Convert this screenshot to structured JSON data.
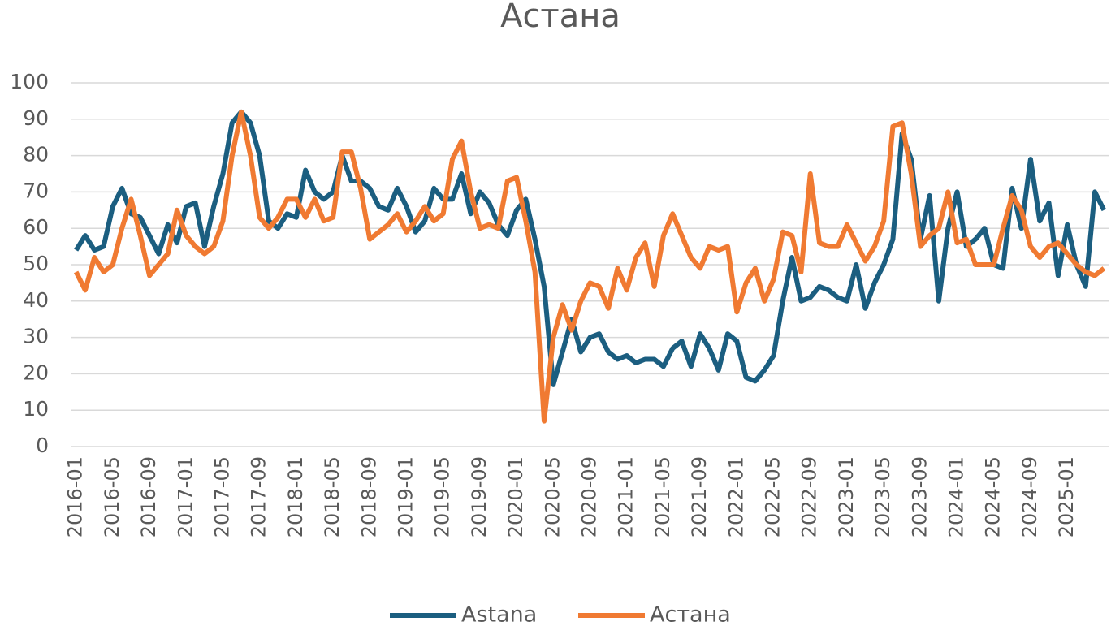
{
  "chart_data": {
    "type": "line",
    "title": "Астана",
    "categories": [
      "2016-01",
      null,
      null,
      null,
      "2016-05",
      null,
      null,
      null,
      "2016-09",
      null,
      null,
      null,
      "2017-01",
      null,
      null,
      null,
      "2017-05",
      null,
      null,
      null,
      "2017-09",
      null,
      null,
      null,
      "2018-01",
      null,
      null,
      null,
      "2018-05",
      null,
      null,
      null,
      "2018-09",
      null,
      null,
      null,
      "2019-01",
      null,
      null,
      null,
      "2019-05",
      null,
      null,
      null,
      "2019-09",
      null,
      null,
      null,
      "2020-01",
      null,
      null,
      null,
      "2020-05",
      null,
      null,
      null,
      "2020-09",
      null,
      null,
      null,
      "2021-01",
      null,
      null,
      null,
      "2021-05",
      null,
      null,
      null,
      "2021-09",
      null,
      null,
      null,
      "2022-01",
      null,
      null,
      null,
      "2022-05",
      null,
      null,
      null,
      "2022-09",
      null,
      null,
      null,
      "2023-01",
      null,
      null,
      null,
      "2023-05",
      null,
      null,
      null,
      "2023-09",
      null,
      null,
      null,
      "2024-01",
      null,
      null,
      null,
      "2024-05",
      null,
      null,
      null,
      "2024-09",
      null,
      null,
      null,
      "2025-01",
      null,
      null,
      null,
      null
    ],
    "series": [
      {
        "name": "Astana",
        "color": "#1b5e80",
        "values": [
          54,
          58,
          54,
          55,
          66,
          71,
          64,
          63,
          58,
          53,
          61,
          56,
          66,
          67,
          55,
          66,
          75,
          89,
          92,
          89,
          80,
          62,
          60,
          64,
          63,
          76,
          70,
          68,
          70,
          80,
          73,
          73,
          71,
          66,
          65,
          71,
          66,
          59,
          62,
          71,
          68,
          68,
          75,
          64,
          70,
          67,
          61,
          58,
          65,
          68,
          57,
          44,
          17,
          26,
          35,
          26,
          30,
          31,
          26,
          24,
          25,
          23,
          24,
          24,
          22,
          27,
          29,
          22,
          31,
          27,
          21,
          31,
          29,
          19,
          18,
          21,
          25,
          40,
          52,
          40,
          41,
          44,
          43,
          41,
          40,
          50,
          38,
          45,
          50,
          57,
          86,
          79,
          57,
          69,
          40,
          60,
          70,
          55,
          57,
          60,
          50,
          49,
          71,
          60,
          79,
          62,
          67,
          47,
          61,
          50,
          44,
          70,
          65
        ]
      },
      {
        "name": "Астана",
        "color": "#f07a32",
        "values": [
          48,
          43,
          52,
          48,
          50,
          60,
          68,
          58,
          47,
          50,
          53,
          65,
          58,
          55,
          53,
          55,
          62,
          80,
          92,
          80,
          63,
          60,
          63,
          68,
          68,
          63,
          68,
          62,
          63,
          81,
          81,
          71,
          57,
          59,
          61,
          64,
          59,
          62,
          66,
          62,
          64,
          79,
          84,
          70,
          60,
          61,
          60,
          73,
          74,
          62,
          48,
          7,
          30,
          39,
          32,
          40,
          45,
          44,
          38,
          49,
          43,
          52,
          56,
          44,
          58,
          64,
          58,
          52,
          49,
          55,
          54,
          55,
          37,
          45,
          49,
          40,
          46,
          59,
          58,
          48,
          75,
          56,
          55,
          55,
          61,
          56,
          51,
          55,
          62,
          88,
          89,
          75,
          55,
          58,
          60,
          70,
          56,
          57,
          50,
          50,
          50,
          60,
          69,
          65,
          55,
          52,
          55,
          56,
          53,
          50,
          48,
          47,
          49
        ]
      }
    ],
    "ylim": [
      0,
      100
    ],
    "yticks": [
      0,
      10,
      20,
      30,
      40,
      50,
      60,
      70,
      80,
      90,
      100
    ],
    "grid": true
  }
}
